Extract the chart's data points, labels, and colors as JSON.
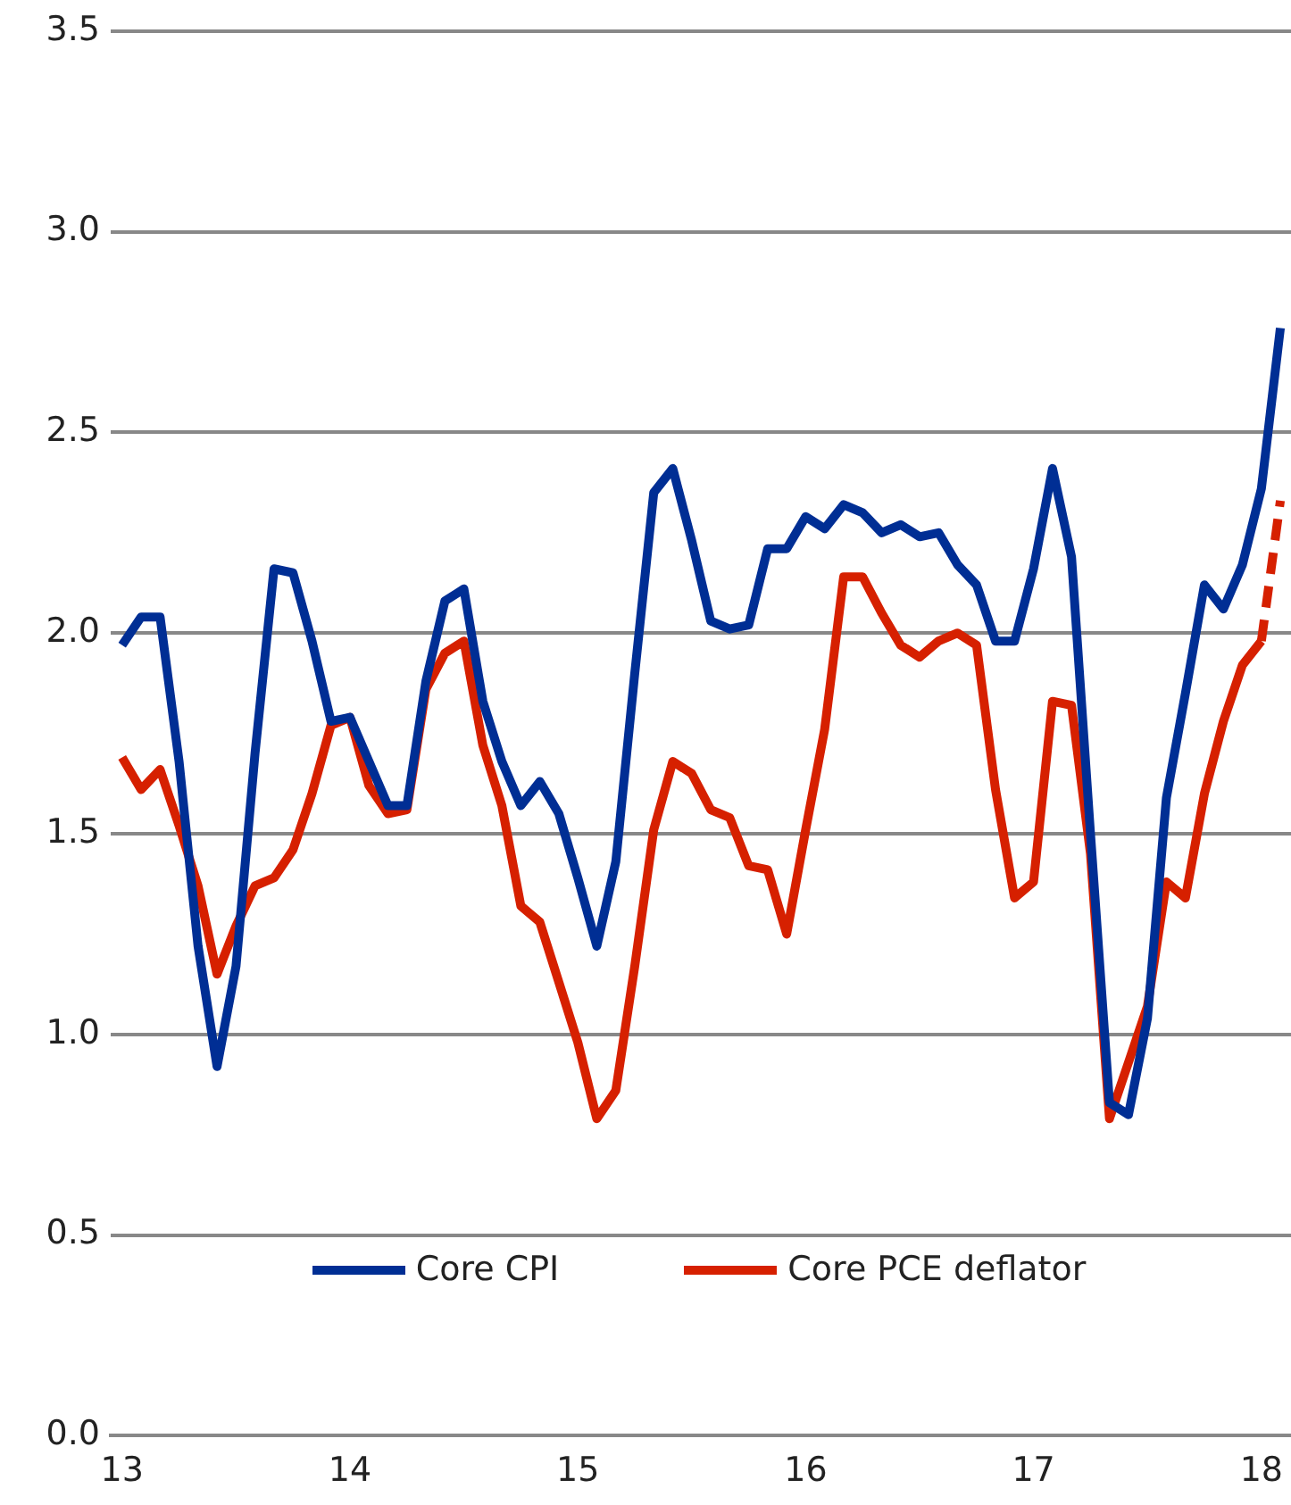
{
  "chart_data": {
    "type": "line",
    "x": [
      13,
      13.0833,
      13.1667,
      13.25,
      13.3333,
      13.4167,
      13.5,
      13.5833,
      13.6667,
      13.75,
      13.8333,
      13.9167,
      14,
      14.0833,
      14.1667,
      14.25,
      14.3333,
      14.4167,
      14.5,
      14.5833,
      14.6667,
      14.75,
      14.8333,
      14.9167,
      15,
      15.0833,
      15.1667,
      15.25,
      15.3333,
      15.4167,
      15.5,
      15.5833,
      15.6667,
      15.75,
      15.8333,
      15.9167,
      16,
      16.0833,
      16.1667,
      16.25,
      16.3333,
      16.4167,
      16.5,
      16.5833,
      16.6667,
      16.75,
      16.8333,
      16.9167,
      17,
      17.0833,
      17.1667,
      17.25,
      17.3333,
      17.4167,
      17.5,
      17.5833,
      17.6667,
      17.75,
      17.8333,
      17.9167,
      18,
      18.0833
    ],
    "series": [
      {
        "name": "Core CPI",
        "color": "#002e94",
        "values": [
          1.97,
          2.04,
          2.04,
          1.68,
          1.22,
          0.92,
          1.17,
          1.7,
          2.16,
          2.15,
          1.98,
          1.78,
          1.79,
          1.68,
          1.57,
          1.57,
          1.88,
          2.08,
          2.11,
          1.83,
          1.68,
          1.57,
          1.63,
          1.55,
          1.39,
          1.22,
          1.43,
          1.9,
          2.35,
          2.41,
          2.23,
          2.03,
          2.01,
          2.02,
          2.21,
          2.21,
          2.29,
          2.26,
          2.32,
          2.3,
          2.25,
          2.27,
          2.24,
          2.25,
          2.17,
          2.12,
          1.98,
          1.98,
          2.16,
          2.41,
          2.19,
          1.5,
          0.83,
          0.8,
          1.04,
          1.59,
          1.85,
          2.12,
          2.06,
          2.17,
          2.36,
          2.76
        ]
      },
      {
        "name": "Core PCE deflator",
        "color": "#d62000",
        "values": [
          1.69,
          1.61,
          1.66,
          1.52,
          1.37,
          1.15,
          1.27,
          1.37,
          1.39,
          1.46,
          1.6,
          1.77,
          1.79,
          1.62,
          1.55,
          1.56,
          1.86,
          1.95,
          1.98,
          1.72,
          1.57,
          1.32,
          1.28,
          1.13,
          0.98,
          0.79,
          0.86,
          1.17,
          1.51,
          1.68,
          1.65,
          1.56,
          1.54,
          1.42,
          1.41,
          1.25,
          1.51,
          1.76,
          2.14,
          2.14,
          2.05,
          1.97,
          1.94,
          1.98,
          2.0,
          1.97,
          1.61,
          1.34,
          1.38,
          1.83,
          1.82,
          1.45,
          0.79,
          0.93,
          1.07,
          1.38,
          1.34,
          1.6,
          1.78,
          1.92,
          1.98,
          null
        ]
      },
      {
        "color": "#d62000",
        "line_style": "dashed",
        "x": [
          18,
          18.0833
        ],
        "values": [
          1.98,
          2.33
        ]
      }
    ],
    "xlim": [
      12.95,
      18.13
    ],
    "xticks": [
      13,
      14,
      15,
      16,
      17,
      18
    ],
    "ylim": [
      0,
      3.5
    ],
    "yticks": [
      {
        "value": 0,
        "label": "0.0"
      },
      0.5,
      {
        "value": 1,
        "label": "1.0"
      },
      1.5,
      {
        "value": 2,
        "label": "2.0"
      },
      2.5,
      {
        "value": 3,
        "label": "3.0"
      },
      3.5
    ],
    "grid": "y",
    "legend": "bottom",
    "marker": "none",
    "line_style": "solid"
  }
}
